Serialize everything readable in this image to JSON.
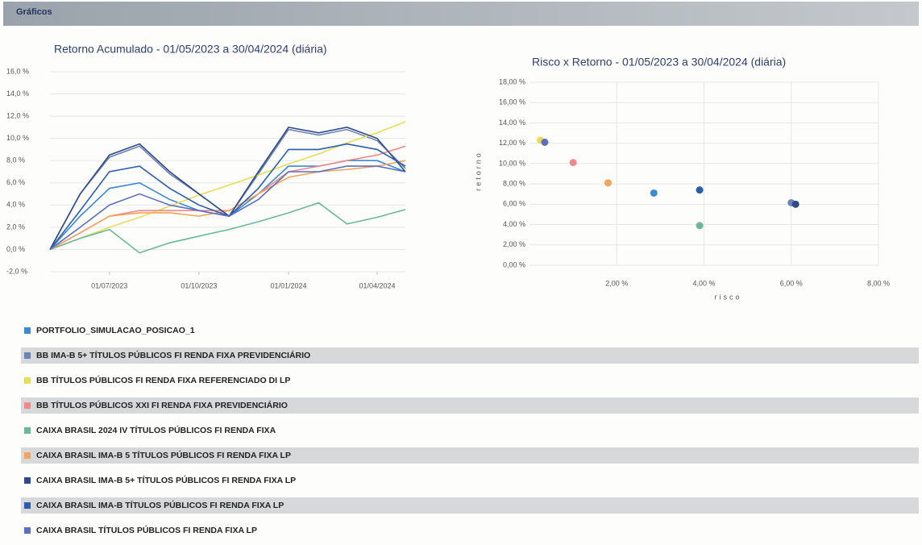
{
  "header": {
    "title": "Gráficos"
  },
  "chart_data": [
    {
      "type": "line",
      "title": "Retorno Acumulado - 01/05/2023 a 30/04/2024 (diária)",
      "x": [
        "2023-05-01",
        "2023-06-01",
        "2023-07-01",
        "2023-08-01",
        "2023-09-01",
        "2023-10-01",
        "2023-11-01",
        "2023-12-01",
        "2024-01-01",
        "2024-02-01",
        "2024-03-01",
        "2024-04-01",
        "2024-04-30"
      ],
      "xlim": [
        "2023-05-01",
        "2024-04-30"
      ],
      "xticks": [
        {
          "value": "2023-07-01",
          "label": "01/07/2023"
        },
        {
          "value": "2023-10-01",
          "label": "01/10/2023"
        },
        {
          "value": "2024-01-01",
          "label": "01/01/2024"
        },
        {
          "value": "2024-04-01",
          "label": "01/04/2024"
        }
      ],
      "ylim": [
        -2,
        16
      ],
      "yticks": [
        {
          "value": -2,
          "label": "-2,0 %"
        },
        {
          "value": 0,
          "label": "0,0 %"
        },
        {
          "value": 2,
          "label": "2,0 %"
        },
        {
          "value": 4,
          "label": "4,0 %"
        },
        {
          "value": 6,
          "label": "6,0 %"
        },
        {
          "value": 8,
          "label": "8,0 %"
        },
        {
          "value": 10,
          "label": "10,0 %"
        },
        {
          "value": 12,
          "label": "12,0 %"
        },
        {
          "value": 14,
          "label": "14,0 %"
        },
        {
          "value": 16,
          "label": "16,0 %"
        }
      ],
      "grid": true,
      "series": [
        {
          "name": "PORTFOLIO_SIMULACAO_POSICAO_1",
          "color": "#3a8ad6",
          "values": [
            0,
            3,
            5.5,
            6,
            4.5,
            3.5,
            3,
            5,
            7.5,
            7.5,
            8,
            8,
            7
          ]
        },
        {
          "name": "BB IMA-B 5+ TÍTULOS PÚBLICOS FI RENDA FIXA PREVIDENCIÁRIO",
          "color": "#6d83b3",
          "values": [
            0,
            5,
            8.3,
            9.3,
            6.8,
            5,
            3,
            6.8,
            10.8,
            10.3,
            10.8,
            9.8,
            7.3
          ]
        },
        {
          "name": "BB TÍTULOS PÚBLICOS FI RENDA FIXA REFERENCIADO DI LP",
          "color": "#e8dd55",
          "values": [
            0,
            1,
            2,
            2.9,
            3.9,
            4.9,
            5.8,
            6.7,
            7.7,
            8.6,
            9.6,
            10.5,
            11.5
          ]
        },
        {
          "name": "BB TÍTULOS PÚBLICOS XXI FI RENDA FIXA PREVIDENCIÁRIO",
          "color": "#f08a8a",
          "values": [
            0,
            1.5,
            3,
            3.5,
            3.5,
            3.5,
            3.5,
            5,
            7,
            7.5,
            8,
            8.5,
            9.3
          ]
        },
        {
          "name": "CAIXA BRASIL 2024 IV TÍTULOS PÚBLICOS FI RENDA FIXA",
          "color": "#6ab79a",
          "values": [
            0,
            1,
            1.8,
            -0.3,
            0.6,
            1.2,
            1.8,
            2.5,
            3.3,
            4.2,
            2.3,
            2.9,
            3.6
          ]
        },
        {
          "name": "CAIXA BRASIL IMA-B 5 TÍTULOS PÚBLICOS FI RENDA FIXA LP",
          "color": "#f5a25a",
          "values": [
            0,
            1.5,
            3,
            3.3,
            3.3,
            3,
            3.5,
            5,
            6.5,
            7,
            7.2,
            7.5,
            8
          ]
        },
        {
          "name": "CAIXA BRASIL IMA-B 5+ TÍTULOS PÚBLICOS FI RENDA FIXA LP",
          "color": "#2e4a8c",
          "values": [
            0,
            5,
            8.5,
            9.5,
            7,
            5,
            3,
            7,
            11,
            10.5,
            11,
            10,
            7
          ]
        },
        {
          "name": "CAIXA BRASIL IMA-B TÍTULOS PÚBLICOS FI RENDA FIXA LP",
          "color": "#2a5fb0",
          "values": [
            0,
            3.5,
            7,
            7.5,
            5.5,
            4,
            3,
            5.5,
            9,
            9,
            9.5,
            9,
            7.5
          ]
        },
        {
          "name": "CAIXA BRASIL TÍTULOS PÚBLICOS FI RENDA FIXA LP",
          "color": "#5a6fc0",
          "values": [
            0,
            2,
            4,
            5,
            4,
            3.5,
            3,
            4.5,
            7,
            7,
            7.5,
            7.5,
            7
          ]
        }
      ]
    },
    {
      "type": "scatter",
      "title": "Risco x Retorno - 01/05/2023 a 30/04/2024 (diária)",
      "x_label": "risco",
      "y_label": "retorno",
      "x": [
        2.85,
        6.0,
        0.25,
        1.0,
        3.9,
        1.8,
        6.1,
        3.9,
        0.35
      ],
      "values": [
        7.1,
        6.15,
        12.3,
        10.1,
        3.9,
        8.1,
        6.0,
        7.4,
        12.1
      ],
      "colors": [
        "#3a8ad6",
        "#6d83b3",
        "#e8dd55",
        "#f08a8a",
        "#6ab79a",
        "#f5a25a",
        "#2e4a8c",
        "#2a5fb0",
        "#5a6fc0"
      ],
      "xlim": [
        0,
        8
      ],
      "xticks": [
        {
          "value": 2,
          "label": "2,00 %"
        },
        {
          "value": 4,
          "label": "4,00 %"
        },
        {
          "value": 6,
          "label": "6,00 %"
        },
        {
          "value": 8,
          "label": "8,00 %"
        }
      ],
      "ylim": [
        0,
        18
      ],
      "yticks": [
        {
          "value": 0,
          "label": "0,00 %"
        },
        {
          "value": 2,
          "label": "2,00 %"
        },
        {
          "value": 4,
          "label": "4,00 %"
        },
        {
          "value": 6,
          "label": "6,00 %"
        },
        {
          "value": 8,
          "label": "8,00 %"
        },
        {
          "value": 10,
          "label": "10,00 %"
        },
        {
          "value": 12,
          "label": "12,00 %"
        },
        {
          "value": 14,
          "label": "14,00 %"
        },
        {
          "value": 16,
          "label": "16,00 %"
        },
        {
          "value": 18,
          "label": "18,00 %"
        }
      ],
      "grid": true
    }
  ]
}
